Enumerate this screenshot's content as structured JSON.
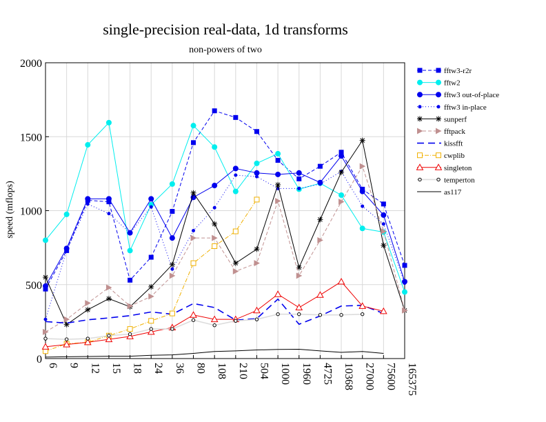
{
  "chart_data": {
    "type": "line",
    "title": "single-precision real-data, 1d transforms",
    "subtitle": "non-powers of two",
    "xlabel": "",
    "ylabel": "speed (mflops)",
    "ylim": [
      0,
      2000
    ],
    "yticks": [
      "0",
      "500",
      "1000",
      "1500",
      "2000"
    ],
    "categories": [
      "6",
      "9",
      "12",
      "15",
      "18",
      "24",
      "36",
      "80",
      "108",
      "210",
      "504",
      "1000",
      "1960",
      "4725",
      "10368",
      "27000",
      "75600",
      "165375"
    ],
    "grid": true,
    "legend_position": "right",
    "series": [
      {
        "name": "fftw3-r2r",
        "color": "#0000ee",
        "dash": "5,3",
        "marker": "square-filled",
        "values": [
          470,
          730,
          1070,
          1060,
          530,
          685,
          995,
          1460,
          1675,
          1630,
          1535,
          1340,
          1215,
          1300,
          1395,
          1145,
          1045,
          630
        ]
      },
      {
        "name": "fftw2",
        "color": "#00eeee",
        "dash": "",
        "marker": "circle-filled",
        "values": [
          800,
          975,
          1445,
          1595,
          730,
          1040,
          1180,
          1575,
          1430,
          1130,
          1320,
          1385,
          1145,
          1185,
          1105,
          880,
          855,
          450
        ]
      },
      {
        "name": "fftw3 out-of-place",
        "color": "#0000ee",
        "dash": "",
        "marker": "circle-filled",
        "values": [
          490,
          745,
          1080,
          1080,
          850,
          1080,
          815,
          1090,
          1170,
          1285,
          1255,
          1245,
          1255,
          1190,
          1370,
          1130,
          970,
          520
        ]
      },
      {
        "name": "fftw3 in-place",
        "color": "#0000ee",
        "dash": "1,3",
        "marker": "dot",
        "values": [
          265,
          730,
          1045,
          980,
          850,
          1025,
          605,
          865,
          1020,
          1240,
          1230,
          1150,
          1150,
          1180,
          1265,
          1030,
          910,
          510
        ]
      },
      {
        "name": "sunperf",
        "color": "#000000",
        "dash": "",
        "marker": "star",
        "values": [
          550,
          230,
          330,
          405,
          350,
          485,
          635,
          1120,
          910,
          645,
          740,
          1175,
          615,
          940,
          1260,
          1475,
          765,
          325
        ]
      },
      {
        "name": "fftpack",
        "color": "#c09090",
        "dash": "5,3",
        "marker": "triangle-right",
        "values": [
          180,
          265,
          375,
          480,
          355,
          420,
          560,
          815,
          815,
          590,
          645,
          1065,
          560,
          800,
          1060,
          1300,
          860,
          325
        ]
      },
      {
        "name": "kissfft",
        "color": "#0000ee",
        "dash": "10,6",
        "marker": "none",
        "values": [
          250,
          240,
          262,
          275,
          290,
          315,
          300,
          372,
          345,
          260,
          270,
          402,
          232,
          288,
          355,
          360,
          305,
          null
        ]
      },
      {
        "name": "cwplib",
        "color": "#f0b000",
        "dash": "6,2,1,2",
        "marker": "square-open",
        "values": [
          50,
          100,
          110,
          155,
          200,
          255,
          305,
          645,
          760,
          860,
          1075,
          null,
          null,
          null,
          null,
          null,
          null,
          null
        ]
      },
      {
        "name": "singleton",
        "color": "#ee0000",
        "dash": "",
        "marker": "triangle-open",
        "values": [
          80,
          95,
          110,
          130,
          150,
          180,
          210,
          295,
          265,
          265,
          325,
          435,
          345,
          430,
          520,
          355,
          320,
          null
        ]
      },
      {
        "name": "temperton",
        "color": "#dcdcdc",
        "dash": "",
        "marker": "circle-open",
        "values": [
          135,
          130,
          135,
          155,
          165,
          200,
          200,
          260,
          225,
          255,
          265,
          300,
          300,
          295,
          295,
          300,
          null,
          null
        ]
      },
      {
        "name": "as117",
        "color": "#000000",
        "dash": "",
        "marker": "none",
        "values": [
          10,
          12,
          14,
          16,
          16,
          22,
          25,
          35,
          48,
          52,
          58,
          62,
          63,
          52,
          42,
          48,
          35,
          null
        ]
      }
    ]
  }
}
